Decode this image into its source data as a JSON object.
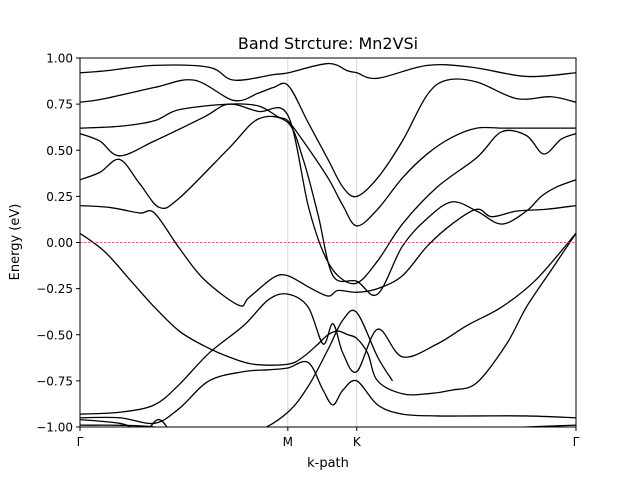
{
  "chart_data": {
    "type": "line",
    "title": "Band Strcture: Mn2VSi",
    "xlabel": "k-path",
    "ylabel": "Energy (eV)",
    "xlim": [
      0,
      1
    ],
    "ylim": [
      -1.0,
      1.0
    ],
    "yticks": [
      -1.0,
      -0.75,
      -0.5,
      -0.25,
      0.0,
      0.25,
      0.5,
      0.75,
      1.0
    ],
    "yticklabels": [
      "−1.00",
      "−0.75",
      "−0.50",
      "−0.25",
      "0.00",
      "0.25",
      "0.50",
      "0.75",
      "1.00"
    ],
    "high_symmetry_points": [
      {
        "label": "Γ",
        "x": 0.0
      },
      {
        "label": "M",
        "x": 0.419
      },
      {
        "label": "K",
        "x": 0.558
      },
      {
        "label": "Γ",
        "x": 1.0
      }
    ],
    "fermi_level": 0.0,
    "colors": {
      "bands": "#000000",
      "fermi": "#d62728",
      "symmetry_lines": "#cccccc"
    },
    "series": [
      {
        "x": [
          0,
          0.05,
          0.15,
          0.26,
          0.31,
          0.39,
          0.42,
          0.5,
          0.54,
          0.558,
          0.6,
          0.7,
          0.79,
          0.9,
          1.0
        ],
        "y": [
          0.92,
          0.93,
          0.96,
          0.95,
          0.88,
          0.91,
          0.92,
          0.97,
          0.93,
          0.92,
          0.89,
          0.96,
          0.95,
          0.9,
          0.92
        ]
      },
      {
        "x": [
          0,
          0.05,
          0.15,
          0.23,
          0.31,
          0.36,
          0.39,
          0.42,
          0.46,
          0.5,
          0.53,
          0.558,
          0.6,
          0.65,
          0.7,
          0.74,
          0.8,
          0.88,
          0.95,
          1.0
        ],
        "y": [
          0.76,
          0.78,
          0.84,
          0.88,
          0.77,
          0.81,
          0.84,
          0.85,
          0.65,
          0.45,
          0.3,
          0.25,
          0.35,
          0.55,
          0.8,
          0.88,
          0.87,
          0.78,
          0.79,
          0.76
        ]
      },
      {
        "x": [
          0,
          0.08,
          0.15,
          0.2,
          0.3,
          0.36,
          0.4,
          0.419,
          0.45,
          0.5,
          0.53,
          0.558,
          0.6,
          0.65,
          0.7,
          0.75,
          0.8,
          0.85,
          0.9,
          0.95,
          1.0
        ],
        "y": [
          0.62,
          0.63,
          0.66,
          0.72,
          0.75,
          0.74,
          0.68,
          0.66,
          0.55,
          0.35,
          0.2,
          0.09,
          0.18,
          0.35,
          0.48,
          0.57,
          0.62,
          0.62,
          0.62,
          0.62,
          0.62
        ]
      },
      {
        "x": [
          0,
          0.04,
          0.08,
          0.15,
          0.25,
          0.3,
          0.36,
          0.419,
          0.46,
          0.49,
          0.52,
          0.558,
          0.6,
          0.65,
          0.72,
          0.8,
          0.85,
          0.9,
          0.935,
          0.97,
          1.0
        ],
        "y": [
          0.59,
          0.55,
          0.47,
          0.55,
          0.68,
          0.75,
          0.71,
          0.69,
          0.2,
          -0.05,
          -0.18,
          -0.22,
          -0.1,
          0.1,
          0.3,
          0.46,
          0.6,
          0.58,
          0.48,
          0.56,
          0.59
        ]
      },
      {
        "x": [
          0,
          0.04,
          0.08,
          0.12,
          0.16,
          0.2,
          0.3,
          0.36,
          0.419,
          0.45,
          0.48,
          0.51,
          0.558,
          0.6,
          0.65,
          0.7,
          0.75,
          0.8,
          0.85,
          0.9,
          0.93,
          0.96,
          1.0
        ],
        "y": [
          0.34,
          0.38,
          0.45,
          0.32,
          0.19,
          0.24,
          0.51,
          0.67,
          0.65,
          0.45,
          0.15,
          -0.18,
          -0.21,
          -0.28,
          -0.02,
          0.13,
          0.22,
          0.17,
          0.1,
          0.17,
          0.25,
          0.3,
          0.34
        ]
      },
      {
        "x": [
          0,
          0.06,
          0.12,
          0.15,
          0.2,
          0.25,
          0.32,
          0.34,
          0.39,
          0.419,
          0.46,
          0.5,
          0.52,
          0.558,
          0.6,
          0.65,
          0.7,
          0.75,
          0.8,
          0.83,
          0.88,
          0.94,
          1.0
        ],
        "y": [
          0.2,
          0.19,
          0.16,
          0.16,
          -0.03,
          -0.2,
          -0.34,
          -0.3,
          -0.19,
          -0.18,
          -0.24,
          -0.29,
          -0.26,
          -0.27,
          -0.25,
          -0.18,
          -0.02,
          0.1,
          0.18,
          0.14,
          0.17,
          0.18,
          0.2
        ]
      },
      {
        "x": [
          0,
          0.05,
          0.1,
          0.15,
          0.2,
          0.25,
          0.3,
          0.35,
          0.419,
          0.45,
          0.48,
          0.5,
          0.52,
          0.54,
          0.558,
          0.58,
          0.6,
          0.65,
          0.7,
          0.75,
          0.8,
          0.86,
          0.9,
          0.95,
          1.0
        ],
        "y": [
          0.05,
          -0.05,
          -0.2,
          -0.35,
          -0.48,
          -0.56,
          -0.62,
          -0.66,
          -0.66,
          -0.62,
          -0.55,
          -0.5,
          -0.48,
          -0.5,
          -0.52,
          -0.6,
          -0.75,
          -0.82,
          -0.82,
          -0.8,
          -0.76,
          -0.55,
          -0.35,
          -0.15,
          0.05
        ]
      },
      {
        "x": [
          0,
          0.08,
          0.15,
          0.2,
          0.26,
          0.33,
          0.38,
          0.419,
          0.46,
          0.49,
          0.51,
          0.53,
          0.558,
          0.6,
          0.65,
          0.72,
          0.78,
          0.85,
          0.92,
          1.0
        ],
        "y": [
          -0.93,
          -0.92,
          -0.88,
          -0.77,
          -0.6,
          -0.45,
          -0.31,
          -0.28,
          -0.35,
          -0.55,
          -0.44,
          -0.6,
          -0.7,
          -0.47,
          -0.62,
          -0.55,
          -0.45,
          -0.35,
          -0.2,
          0.05
        ]
      },
      {
        "x": [
          0,
          0.08,
          0.15,
          0.2,
          0.26,
          0.33,
          0.38,
          0.419,
          0.46,
          0.49,
          0.51,
          0.53,
          0.558,
          0.6,
          0.65,
          0.72,
          0.8,
          0.9,
          1.0
        ],
        "y": [
          -0.95,
          -0.95,
          -0.98,
          -0.9,
          -0.75,
          -0.7,
          -0.69,
          -0.68,
          -0.65,
          -0.8,
          -0.88,
          -0.8,
          -0.75,
          -0.88,
          -0.93,
          -0.94,
          -0.94,
          -0.94,
          -0.95
        ]
      },
      {
        "x": [
          0,
          0.08,
          0.13,
          0.16,
          0.2,
          0.3,
          0.36,
          0.419,
          0.46,
          0.5,
          0.53,
          0.558,
          0.6,
          0.63
        ],
        "y": [
          -0.96,
          -0.98,
          -1.02,
          -0.96,
          -1.05,
          -1.05,
          -1.02,
          -0.92,
          -0.78,
          -0.58,
          -0.42,
          -0.38,
          -0.62,
          -0.75
        ]
      },
      {
        "x": [
          0,
          0.15,
          0.3,
          0.419,
          0.5,
          0.558,
          0.65,
          0.8,
          0.9,
          1.0
        ],
        "y": [
          -0.99,
          -1.0,
          -1.08,
          -1.1,
          -1.08,
          -1.05,
          -1.02,
          -1.01,
          -1.0,
          -0.99
        ]
      }
    ]
  }
}
